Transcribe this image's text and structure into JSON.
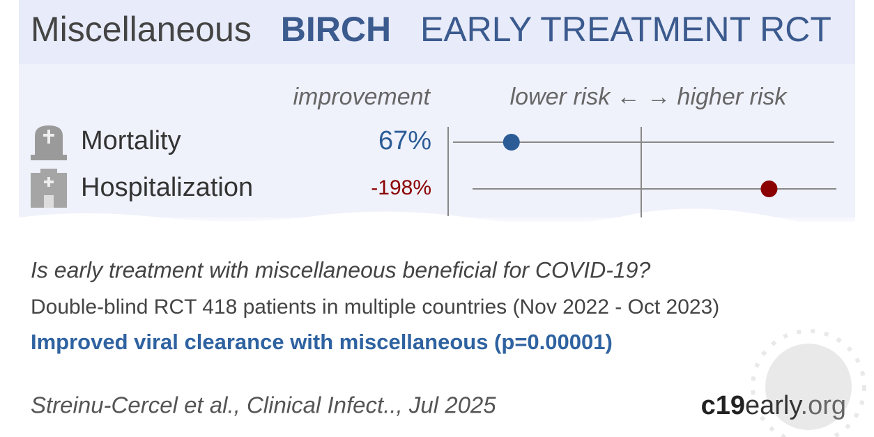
{
  "header": {
    "treatment": "Miscellaneous",
    "trial": "BIRCH",
    "design": "EARLY TREATMENT RCT"
  },
  "plot": {
    "improvement_label": "improvement",
    "direction_label": "lower risk ← → higher risk",
    "outcomes": [
      {
        "name": "Mortality",
        "value": 67,
        "value_label": "67%",
        "color": "#2b5c96"
      },
      {
        "name": "Hospitalization",
        "value": -198,
        "value_label": "-198%",
        "color": "#8b0000"
      }
    ]
  },
  "summary": {
    "question": "Is early treatment with miscellaneous beneficial for COVID-19?",
    "details": "Double-blind RCT 418 patients in multiple countries (Nov 2022 - Oct 2023)",
    "result": "Improved viral clearance with miscellaneous (p=0.00001)"
  },
  "footer": {
    "citation": "Streinu-Cercel et al., Clinical Infect.., Jul 2025",
    "site_bold": "c19",
    "site_mid": "early",
    "site_end": ".org"
  }
}
